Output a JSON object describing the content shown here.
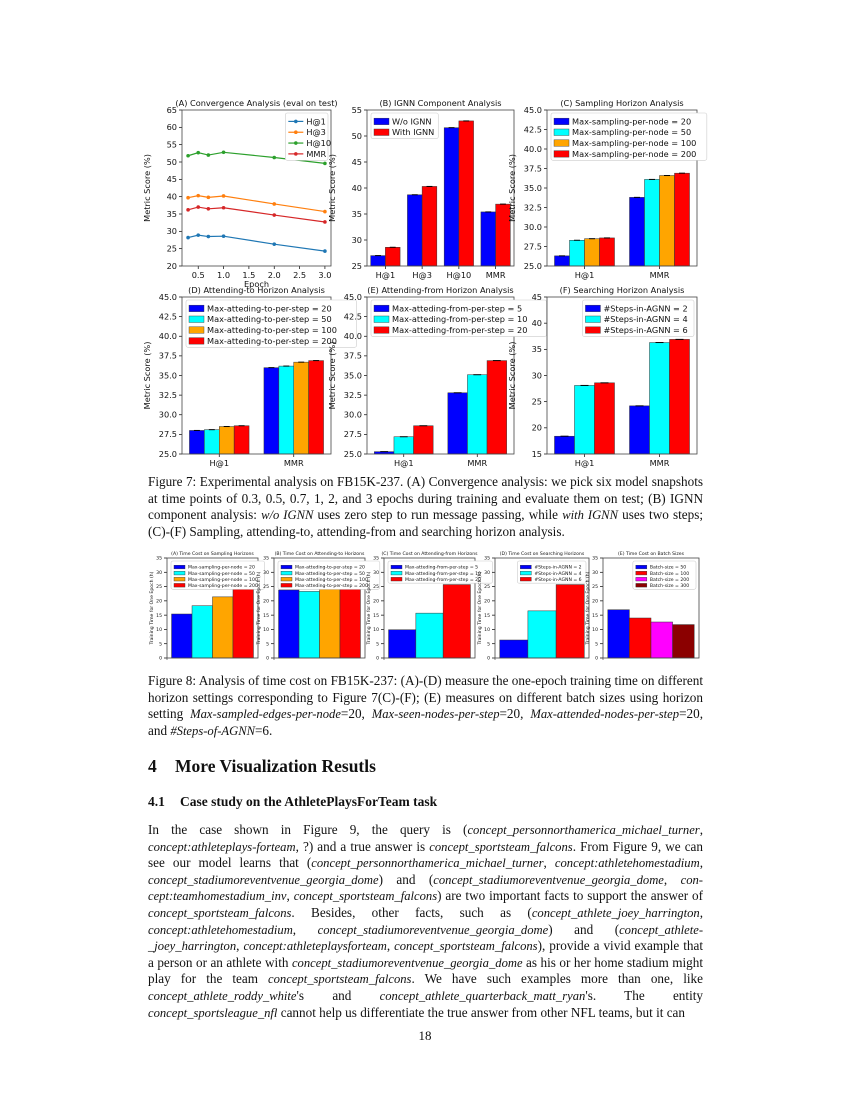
{
  "chart_data": [
    {
      "id": "7A",
      "type": "line",
      "title": "(A) Convergence Analysis (eval on test)",
      "xlabel": "Epoch",
      "ylabel": "Metric Score (%)",
      "x": [
        0.3,
        0.5,
        0.7,
        1,
        2,
        3
      ],
      "xlim": [
        0.18,
        3.12
      ],
      "xticks": [
        "0.5",
        "1.0",
        "1.5",
        "2.0",
        "2.5",
        "3.0"
      ],
      "ylim": [
        20,
        65
      ],
      "yticks": [
        "20",
        "25",
        "30",
        "35",
        "40",
        "45",
        "50",
        "55",
        "60",
        "65"
      ],
      "legend": "top-right",
      "series": [
        {
          "name": "H@1",
          "color": "#1f77b4",
          "values": [
            28.2,
            28.9,
            28.5,
            28.6,
            26.3,
            24.3
          ]
        },
        {
          "name": "H@3",
          "color": "#ff7f0e",
          "values": [
            39.7,
            40.3,
            39.8,
            40.2,
            37.9,
            35.7
          ]
        },
        {
          "name": "H@10",
          "color": "#2ca02c",
          "values": [
            51.8,
            52.7,
            52.0,
            52.8,
            51.3,
            49.6
          ]
        },
        {
          "name": "MMR",
          "color": "#d62728",
          "values": [
            36.2,
            37.0,
            36.5,
            36.8,
            34.7,
            32.7
          ]
        }
      ]
    },
    {
      "id": "7B",
      "type": "bar",
      "title": "(B) IGNN Component Analysis",
      "xlabel": "",
      "ylabel": "Metric Score (%)",
      "categories": [
        "H@1",
        "H@3",
        "H@10",
        "MMR"
      ],
      "ylim": [
        25,
        55
      ],
      "yticks": [
        "25",
        "30",
        "35",
        "40",
        "45",
        "50",
        "55"
      ],
      "legend": "top-left",
      "series": [
        {
          "name": "W/o IGNN",
          "color": "#0000ff",
          "values": [
            27.0,
            38.7,
            51.6,
            35.4
          ]
        },
        {
          "name": "With IGNN",
          "color": "#ff0000",
          "values": [
            28.6,
            40.3,
            52.9,
            36.9
          ]
        }
      ]
    },
    {
      "id": "7C",
      "type": "bar",
      "title": "(C) Sampling Horizon Analysis",
      "xlabel": "",
      "ylabel": "Metric Score (%)",
      "categories": [
        "H@1",
        "MMR"
      ],
      "ylim": [
        25,
        45
      ],
      "yticks": [
        "25.0",
        "27.5",
        "30.0",
        "32.5",
        "35.0",
        "37.5",
        "40.0",
        "42.5",
        "45.0"
      ],
      "legend": "top-left",
      "series": [
        {
          "name": "Max-sampling-per-node = 20",
          "color": "#0000ff",
          "values": [
            26.3,
            33.8
          ]
        },
        {
          "name": "Max-sampling-per-node = 50",
          "color": "#00ffff",
          "values": [
            28.3,
            36.1
          ]
        },
        {
          "name": "Max-sampling-per-node = 100",
          "color": "#ffa500",
          "values": [
            28.5,
            36.6
          ]
        },
        {
          "name": "Max-sampling-per-node = 200",
          "color": "#ff0000",
          "values": [
            28.6,
            36.9
          ]
        }
      ]
    },
    {
      "id": "7D",
      "type": "bar",
      "title": "(D) Attending-to Horizon Analysis",
      "xlabel": "",
      "ylabel": "Metric Score (%)",
      "categories": [
        "H@1",
        "MMR"
      ],
      "ylim": [
        25,
        45
      ],
      "yticks": [
        "25.0",
        "27.5",
        "30.0",
        "32.5",
        "35.0",
        "37.5",
        "40.0",
        "42.5",
        "45.0"
      ],
      "legend": "top-left",
      "series": [
        {
          "name": "Max-atteding-to-per-step = 20",
          "color": "#0000ff",
          "values": [
            28.0,
            36.0
          ]
        },
        {
          "name": "Max-atteding-to-per-step = 50",
          "color": "#00ffff",
          "values": [
            28.1,
            36.2
          ]
        },
        {
          "name": "Max-atteding-to-per-step = 100",
          "color": "#ffa500",
          "values": [
            28.5,
            36.7
          ]
        },
        {
          "name": "Max-atteding-to-per-step = 200",
          "color": "#ff0000",
          "values": [
            28.6,
            36.9
          ]
        }
      ]
    },
    {
      "id": "7E",
      "type": "bar",
      "title": "(E) Attending-from Horizon Analysis",
      "xlabel": "",
      "ylabel": "Metric Score (%)",
      "categories": [
        "H@1",
        "MMR"
      ],
      "ylim": [
        25,
        45
      ],
      "yticks": [
        "25.0",
        "27.5",
        "30.0",
        "32.5",
        "35.0",
        "37.5",
        "40.0",
        "42.5",
        "45.0"
      ],
      "legend": "top-left",
      "series": [
        {
          "name": "Max-atteding-from-per-step = 5",
          "color": "#0000ff",
          "values": [
            25.3,
            32.8
          ]
        },
        {
          "name": "Max-atteding-from-per-step = 10",
          "color": "#00ffff",
          "values": [
            27.2,
            35.1
          ]
        },
        {
          "name": "Max-atteding-from-per-step = 20",
          "color": "#ff0000",
          "values": [
            28.6,
            36.9
          ]
        }
      ]
    },
    {
      "id": "7F",
      "type": "bar",
      "title": "(F) Searching Horizon Analysis",
      "xlabel": "",
      "ylabel": "Metric Score (%)",
      "categories": [
        "H@1",
        "MMR"
      ],
      "ylim": [
        15,
        45
      ],
      "yticks": [
        "15",
        "20",
        "25",
        "30",
        "35",
        "40",
        "45"
      ],
      "legend": "top-right",
      "series": [
        {
          "name": "#Steps-in-AGNN = 2",
          "color": "#0000ff",
          "values": [
            18.4,
            24.2
          ]
        },
        {
          "name": "#Steps-in-AGNN = 4",
          "color": "#00ffff",
          "values": [
            28.1,
            36.3
          ]
        },
        {
          "name": "#Steps-in-AGNN = 6",
          "color": "#ff0000",
          "values": [
            28.6,
            36.9
          ]
        }
      ]
    },
    {
      "id": "8A",
      "type": "bar",
      "title": "(A) Time Cost on Sampling Horizons",
      "xlabel": "",
      "ylabel": "Training Time for One Epoch (h)",
      "categories": [
        ""
      ],
      "ylim": [
        0,
        35
      ],
      "yticks": [
        "0",
        "5",
        "10",
        "15",
        "20",
        "25",
        "30",
        "35"
      ],
      "legend": "top-left",
      "series": [
        {
          "name": "Max-sampling-per-node = 20",
          "color": "#0000ff",
          "values": [
            15.4
          ]
        },
        {
          "name": "Max-sampling-per-node = 50",
          "color": "#00ffff",
          "values": [
            18.3
          ]
        },
        {
          "name": "Max-sampling-per-node = 100",
          "color": "#ffa500",
          "values": [
            21.4
          ]
        },
        {
          "name": "Max-sampling-per-node = 200",
          "color": "#ff0000",
          "values": [
            25.0
          ]
        }
      ]
    },
    {
      "id": "8B",
      "type": "bar",
      "title": "(B) Time Cost on Attending-to Horizons",
      "xlabel": "",
      "ylabel": "Training Time for One Epoch (h)",
      "categories": [
        ""
      ],
      "ylim": [
        0,
        35
      ],
      "yticks": [
        "0",
        "5",
        "10",
        "15",
        "20",
        "25",
        "30",
        "35"
      ],
      "legend": "top-left",
      "series": [
        {
          "name": "Max-atteding-to-per-step = 20",
          "color": "#0000ff",
          "values": [
            23.8
          ]
        },
        {
          "name": "Max-atteding-to-per-step = 50",
          "color": "#00ffff",
          "values": [
            23.3
          ]
        },
        {
          "name": "Max-atteding-to-per-step = 100",
          "color": "#ffa500",
          "values": [
            24.7
          ]
        },
        {
          "name": "Max-atteding-to-per-step = 200",
          "color": "#ff0000",
          "values": [
            25.0
          ]
        }
      ]
    },
    {
      "id": "8C",
      "type": "bar",
      "title": "(C) Time Cost on Attending-from Horizons",
      "xlabel": "",
      "ylabel": "Training Time for One Epoch (h)",
      "categories": [
        ""
      ],
      "ylim": [
        0,
        35
      ],
      "yticks": [
        "0",
        "5",
        "10",
        "15",
        "20",
        "25",
        "30",
        "35"
      ],
      "legend": "top-left",
      "series": [
        {
          "name": "Max-atteding-from-per-step = 5",
          "color": "#0000ff",
          "values": [
            9.9
          ]
        },
        {
          "name": "Max-atteding-from-per-step = 10",
          "color": "#00ffff",
          "values": [
            15.7
          ]
        },
        {
          "name": "Max-atteding-from-per-step = 20",
          "color": "#ff0000",
          "values": [
            25.7
          ]
        }
      ]
    },
    {
      "id": "8D",
      "type": "bar",
      "title": "(D) Time Cost on Searching Horizons",
      "xlabel": "",
      "ylabel": "Training Time for One Epoch (h)",
      "categories": [
        ""
      ],
      "ylim": [
        0,
        35
      ],
      "yticks": [
        "0",
        "5",
        "10",
        "15",
        "20",
        "25",
        "30",
        "35"
      ],
      "legend": "top-right",
      "series": [
        {
          "name": "#Steps-in-AGNN = 2",
          "color": "#0000ff",
          "values": [
            6.3
          ]
        },
        {
          "name": "#Steps-in-AGNN = 4",
          "color": "#00ffff",
          "values": [
            16.5
          ]
        },
        {
          "name": "#Steps-in-AGNN = 6",
          "color": "#ff0000",
          "values": [
            25.7
          ]
        }
      ]
    },
    {
      "id": "8E",
      "type": "bar",
      "title": "(E) Time Cost on Batch Sizes",
      "xlabel": "",
      "ylabel": "Training Time for One Epoch (h)",
      "categories": [
        ""
      ],
      "ylim": [
        0,
        35
      ],
      "yticks": [
        "0",
        "5",
        "10",
        "15",
        "20",
        "25",
        "30",
        "35"
      ],
      "legend": "top-right",
      "series": [
        {
          "name": "Batch-size = 50",
          "color": "#0000ff",
          "values": [
            16.9
          ]
        },
        {
          "name": "Batch-size = 100",
          "color": "#ff0000",
          "values": [
            14.0
          ]
        },
        {
          "name": "Batch-size = 200",
          "color": "#ff00ff",
          "values": [
            12.6
          ]
        },
        {
          "name": "Batch-size = 300",
          "color": "#8b0000",
          "values": [
            11.7
          ]
        }
      ]
    }
  ],
  "figure7": {
    "caption": [
      {
        "text": "Figure 7: Experimental analysis on FB15K-237. (A) Convergence analysis: we pick six model snapshots at time points of 0.3, 0.5, 0.7, 1, 2, and 3 epochs during training and evaluate them on test; (B) IGNN component analysis: ",
        "italic": false
      },
      {
        "text": "w/o IGNN",
        "italic": true
      },
      {
        "text": " uses zero step to run message passing, while ",
        "italic": false
      },
      {
        "text": "with IGNN",
        "italic": true
      },
      {
        "text": " uses two steps; (C)-(F) Sampling, attending-to, attending-from and searching horizon analysis.",
        "italic": false
      }
    ]
  },
  "figure8": {
    "caption": [
      {
        "text": "Figure 8: Analysis of time cost on FB15K-237: (A)-(D) measure the one-epoch training time on different horizon settings corresponding to Figure 7(C)-(F); (E) measures on different batch sizes using horizon setting ",
        "italic": false
      },
      {
        "text": "Max-sampled-edges-per-node",
        "italic": true
      },
      {
        "text": "=20, ",
        "italic": false
      },
      {
        "text": "Max-seen-nodes-per-step",
        "italic": true
      },
      {
        "text": "=20, ",
        "italic": false
      },
      {
        "text": "Max-attended-nodes-per-step",
        "italic": true
      },
      {
        "text": "=20, and ",
        "italic": false
      },
      {
        "text": "#Steps-of-AGNN",
        "italic": true
      },
      {
        "text": "=6.",
        "italic": false
      }
    ]
  },
  "section": {
    "number": "4",
    "title": "More Visualization Resutls"
  },
  "subsection": {
    "number": "4.1",
    "title": "Case study on the AthletePlaysForTeam task"
  },
  "paragraph": [
    {
      "text": "In the case shown in Figure 9, the query is (",
      "italic": false
    },
    {
      "text": "concept_personnorthamerica_michael_turner",
      "italic": true
    },
    {
      "text": ", ",
      "italic": false
    },
    {
      "text": "concept:athleteplays-forteam",
      "italic": true
    },
    {
      "text": ", ?) and a true answer is ",
      "italic": false
    },
    {
      "text": "concept_sportsteam_falcons",
      "italic": true
    },
    {
      "text": ". From Figure 9, we can see our model learns that (",
      "italic": false
    },
    {
      "text": "concept_personnorthamerica_michael_turner",
      "italic": true
    },
    {
      "text": ", ",
      "italic": false
    },
    {
      "text": "concept:athletehomestadium",
      "italic": true
    },
    {
      "text": ", ",
      "italic": false
    },
    {
      "text": "concept_stadiumoreventvenue_georgia_dome",
      "italic": true
    },
    {
      "text": ") and (",
      "italic": false
    },
    {
      "text": "concept_stadiumoreventvenue_georgia_dome",
      "italic": true
    },
    {
      "text": ", ",
      "italic": false
    },
    {
      "text": "con-cept:teamhomestadium_inv",
      "italic": true
    },
    {
      "text": ", ",
      "italic": false
    },
    {
      "text": "concept_sportsteam_falcons",
      "italic": true
    },
    {
      "text": ") are two important facts to support the answer of ",
      "italic": false
    },
    {
      "text": "concept_sportsteam_falcons",
      "italic": true
    },
    {
      "text": ". Besides, other facts, such as (",
      "italic": false
    },
    {
      "text": "concept_athlete_joey_harrington",
      "italic": true
    },
    {
      "text": ", ",
      "italic": false
    },
    {
      "text": "concept:athletehomestadium",
      "italic": true
    },
    {
      "text": ", ",
      "italic": false
    },
    {
      "text": "concept_stadiumoreventvenue_georgia_dome",
      "italic": true
    },
    {
      "text": ") and (",
      "italic": false
    },
    {
      "text": "concept_athlete-_joey_harrington",
      "italic": true
    },
    {
      "text": ", ",
      "italic": false
    },
    {
      "text": "concept:athleteplaysforteam",
      "italic": true
    },
    {
      "text": ", ",
      "italic": false
    },
    {
      "text": "concept_sportsteam_falcons",
      "italic": true
    },
    {
      "text": "), provide a vivid example that a person or an athlete with ",
      "italic": false
    },
    {
      "text": "concept_stadiumoreventvenue_georgia_dome",
      "italic": true
    },
    {
      "text": " as his or her home stadium might play for the team ",
      "italic": false
    },
    {
      "text": "concept_sportsteam_falcons",
      "italic": true
    },
    {
      "text": ". We have such examples more than one, like ",
      "italic": false
    },
    {
      "text": "concept_athlete_roddy_white",
      "italic": true
    },
    {
      "text": "'s and ",
      "italic": false
    },
    {
      "text": "concept_athlete_quarterback_matt_ryan",
      "italic": true
    },
    {
      "text": "'s. The entity ",
      "italic": false
    },
    {
      "text": "concept_sportsleague_nfl",
      "italic": true
    },
    {
      "text": " cannot help us differentiate the true answer from other NFL teams, but it can",
      "italic": false
    }
  ],
  "page_number": "18"
}
